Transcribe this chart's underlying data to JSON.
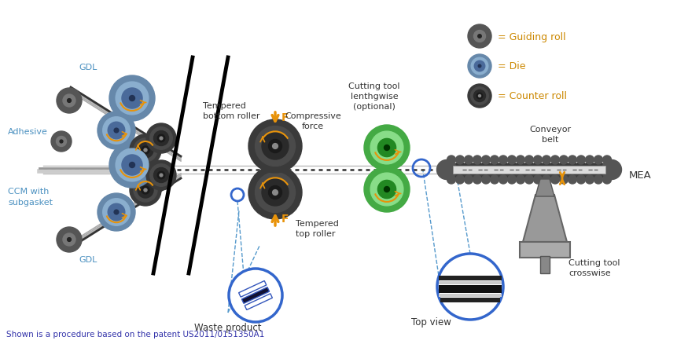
{
  "bg_color": "#ffffff",
  "title_bottom": "Shown is a procedure based on the patent US2011/0151350A1",
  "labels": {
    "GDL_top": "GDL",
    "GDL_bottom": "GDL",
    "CCM": "CCM with\nsubgasket",
    "Adhesive": "Adhesive",
    "waste": "Waste product",
    "tempered_top": "Tempered\ntop roller",
    "tempered_bottom": "Tempered\nbottom roller",
    "compressive": "Compressive\nforce",
    "cutting_lengthwise": "Cutting tool\nlenthgwise\n(optional)",
    "cutting_crosswise": "Cutting tool\ncrosswise",
    "top_view": "Top view",
    "conveyor": "Conveyor\nbelt",
    "MEA": "MEA",
    "counter_roll": "= Counter roll",
    "die": "= Die",
    "guiding_roll": "= Guiding roll"
  },
  "colors": {
    "dark_gray_roll": "#3a3a3a",
    "blue_gray_roll": "#5a7aa0",
    "green_roll": "#55b050",
    "orange_arrow": "#e8930a",
    "blue_label": "#4a90c0",
    "belt_dark": "#555555",
    "dashed_line": "#555555",
    "top_view_border": "#3366cc"
  }
}
